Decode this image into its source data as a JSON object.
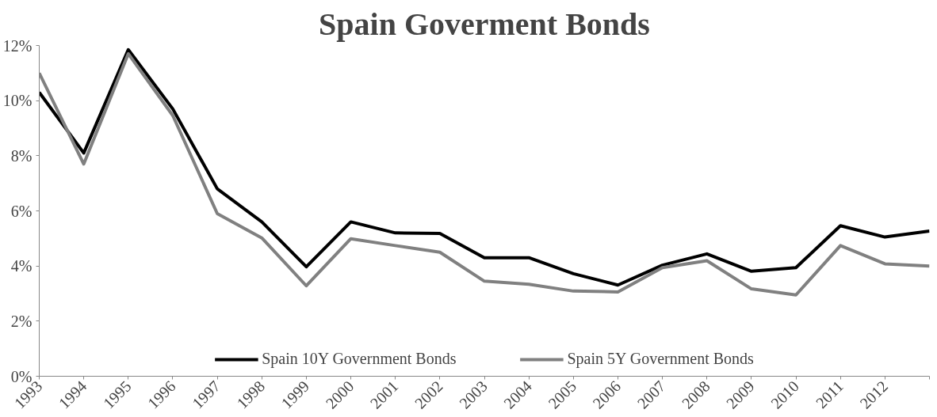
{
  "chart_data": {
    "type": "line",
    "title": "Spain Goverment Bonds",
    "categories": [
      "1993",
      "1994",
      "1995",
      "1996",
      "1997",
      "1998",
      "1999",
      "2000",
      "2001",
      "2002",
      "2003",
      "2004",
      "2005",
      "2006",
      "2007",
      "2008",
      "2009",
      "2010",
      "2011",
      "2012",
      null
    ],
    "series": [
      {
        "name": "Spain 10Y Government Bonds",
        "color": "#000000",
        "values": [
          10.3,
          8.1,
          11.85,
          9.7,
          6.8,
          5.6,
          3.97,
          5.6,
          5.2,
          5.18,
          4.3,
          4.3,
          3.72,
          3.31,
          4.03,
          4.44,
          3.81,
          3.94,
          5.46,
          5.05,
          5.27
        ]
      },
      {
        "name": "Spain 5Y Government Bonds",
        "color": "#808080",
        "values": [
          11.0,
          7.7,
          11.7,
          9.46,
          5.9,
          5.02,
          3.28,
          4.99,
          4.74,
          4.5,
          3.45,
          3.34,
          3.09,
          3.06,
          3.94,
          4.19,
          3.17,
          2.95,
          4.74,
          4.08,
          4.0
        ]
      }
    ],
    "ylim": [
      0,
      12
    ],
    "yticks": [
      {
        "value": 0,
        "label": "0%"
      },
      {
        "value": 2,
        "label": "2%"
      },
      {
        "value": 4,
        "label": "4%"
      },
      {
        "value": 6,
        "label": "6%"
      },
      {
        "value": 8,
        "label": "8%"
      },
      {
        "value": 10,
        "label": "10%"
      },
      {
        "value": 12,
        "label": "12%"
      }
    ],
    "grid": false,
    "legend": "bottom",
    "marker": "none",
    "line_style": "solid"
  }
}
